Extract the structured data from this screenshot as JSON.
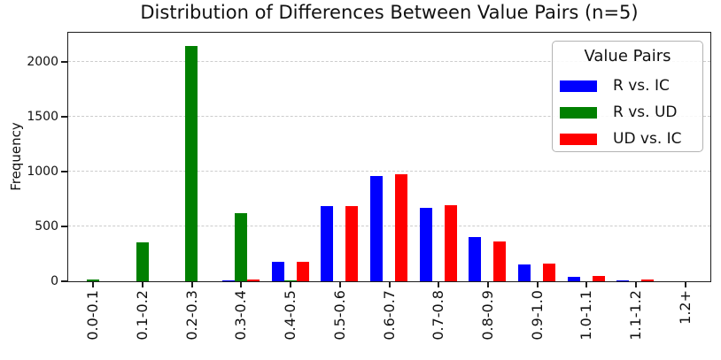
{
  "chart_data": {
    "type": "bar",
    "title": "Distribution of Differences Between Value Pairs (n=5)",
    "xlabel": "",
    "ylabel": "Frequency",
    "categories": [
      "0.0-0.1",
      "0.1-0.2",
      "0.2-0.3",
      "0.3-0.4",
      "0.4-0.5",
      "0.5-0.6",
      "0.6-0.7",
      "0.7-0.8",
      "0.8-0.9",
      "0.9-1.0",
      "1.0-1.1",
      "1.1-1.2",
      "1.2+"
    ],
    "series": [
      {
        "name": "R vs. IC",
        "color": "#0000ff",
        "values": [
          0,
          0,
          0,
          8,
          180,
          690,
          960,
          670,
          405,
          155,
          42,
          8,
          0
        ]
      },
      {
        "name": "R vs. UD",
        "color": "#008000",
        "values": [
          18,
          353,
          2150,
          620,
          8,
          0,
          0,
          0,
          0,
          0,
          0,
          0,
          0
        ]
      },
      {
        "name": "UD vs. IC",
        "color": "#ff0000",
        "values": [
          0,
          0,
          0,
          15,
          178,
          685,
          975,
          697,
          360,
          158,
          50,
          16,
          0
        ]
      }
    ],
    "ylim": [
      0,
      2260
    ],
    "yticks": [
      0,
      500,
      1000,
      1500,
      2000
    ],
    "grid": "horizontal dashed",
    "x_tick_rotation": 90,
    "legend": {
      "title": "Value Pairs",
      "position": "upper right"
    }
  }
}
